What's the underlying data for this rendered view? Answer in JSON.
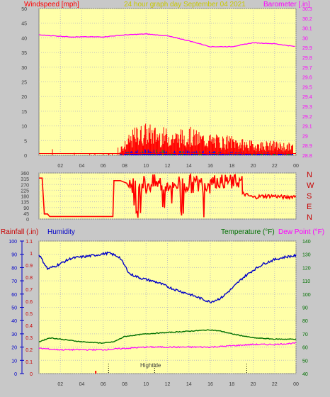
{
  "header": {
    "left": "Windspeed [mph]",
    "center": "24 hour graph day   September 04 2021",
    "right": "Barometer [.in]"
  },
  "colors": {
    "background": "#c8c8c8",
    "plot": "#ffffa8",
    "grid": "#c0c0c0",
    "wind": "#ff0000",
    "gust": "#0000ff",
    "windgreen": "#00a000",
    "barometer": "#ff00ff",
    "header_center": "#c8c800",
    "humidity": "#0000c8",
    "temperature": "#007000",
    "dew": "#ff00ff",
    "rain_label": "#c80000"
  },
  "compass": [
    "N",
    "W",
    "S",
    "E",
    "N"
  ],
  "lower_header": {
    "rainfall": "Rainfall (.in)",
    "humidity": "Humidity",
    "temperature": "Temperature (°F)",
    "dew": "Dew Point (°F)"
  },
  "tide": {
    "label": "Hightide"
  },
  "chart_data": [
    {
      "type": "line",
      "name": "wind-barometer",
      "x_ticks": [
        "02",
        "04",
        "06",
        "08",
        "10",
        "12",
        "14",
        "16",
        "18",
        "20",
        "22",
        "00"
      ],
      "y_left": {
        "label": "Windspeed [mph]",
        "ticks": [
          0,
          5,
          10,
          15,
          20,
          25,
          30,
          35,
          40,
          45,
          50
        ],
        "range": [
          0,
          50
        ]
      },
      "y_right": {
        "label": "Barometer [.in]",
        "ticks": [
          "28.8",
          "28.9",
          "29",
          "29.1",
          "29.2",
          "29.3",
          "29.4",
          "29.5",
          "29.6",
          "29.7",
          "29.8",
          "29.9",
          "30",
          "30.1",
          "30.2",
          "30.3"
        ],
        "range": [
          28.8,
          30.3
        ]
      },
      "barometer": {
        "x": [
          0,
          3,
          6,
          8,
          10,
          12,
          14,
          16,
          18,
          20,
          22,
          24
        ],
        "y": [
          30.03,
          30.01,
          30.01,
          30.03,
          30.04,
          30.02,
          29.97,
          29.91,
          29.91,
          29.95,
          29.94,
          29.91
        ]
      },
      "wind_envelope": {
        "x": [
          0,
          2,
          4,
          6,
          7,
          8,
          9,
          10,
          11,
          12,
          13,
          14,
          15,
          16,
          17,
          18,
          19,
          20,
          21,
          22,
          23,
          24
        ],
        "y": [
          1.5,
          1,
          0.5,
          0.5,
          0.5,
          4,
          8,
          9,
          8,
          7.5,
          7,
          8,
          6.5,
          6,
          5.5,
          5.5,
          4.5,
          4,
          4,
          4,
          3.5,
          3.5
        ]
      }
    },
    {
      "type": "line",
      "name": "wind-direction",
      "y_left": {
        "ticks": [
          0,
          45,
          90,
          135,
          180,
          225,
          270,
          315,
          360
        ],
        "range": [
          0,
          360
        ]
      },
      "x": [
        0,
        0.3,
        0.5,
        0.8,
        1,
        6.9,
        7,
        7.6,
        8.2,
        8.4,
        9,
        10,
        11,
        12,
        13,
        14,
        15,
        16,
        17,
        18,
        19,
        20,
        21,
        22,
        23,
        24
      ],
      "y": [
        320,
        320,
        40,
        40,
        20,
        20,
        300,
        300,
        280,
        250,
        300,
        200,
        290,
        280,
        270,
        250,
        300,
        300,
        280,
        240,
        200,
        170,
        180,
        180,
        170,
        180
      ]
    },
    {
      "type": "line",
      "name": "rain-humidity-temperature",
      "x_ticks": [
        "02",
        "04",
        "06",
        "08",
        "10",
        "12",
        "14",
        "16",
        "18",
        "20",
        "22",
        "00"
      ],
      "y_rain": {
        "label": "Rainfall (.in)",
        "ticks": [
          "0",
          "0.1",
          "0.2",
          "0.3",
          "0.4",
          "0.5",
          "0.6",
          "0.7",
          "0.8",
          "0.9",
          "1",
          "1.1"
        ],
        "range": [
          0,
          1.1
        ]
      },
      "y_humidity": {
        "label": "Humidity",
        "ticks": [
          0,
          10,
          20,
          30,
          40,
          50,
          60,
          70,
          80,
          90,
          100
        ],
        "range": [
          0,
          100
        ]
      },
      "y_temp": {
        "label": "Temperature (°F)",
        "ticks": [
          40,
          50,
          60,
          70,
          80,
          90,
          100,
          110,
          120,
          130,
          140
        ],
        "range": [
          40,
          140
        ]
      },
      "humidity": {
        "x": [
          0,
          0.8,
          1.5,
          3,
          5,
          6.5,
          7.5,
          8.5,
          9.5,
          11,
          12.5,
          14,
          15,
          16,
          17,
          18,
          19,
          20,
          21,
          22,
          23,
          24
        ],
        "y": [
          90,
          79,
          81,
          87,
          89,
          91,
          88,
          75,
          72,
          69,
          64,
          60,
          57,
          54,
          57,
          64,
          72,
          78,
          83,
          86,
          88,
          89
        ]
      },
      "temperature": {
        "x": [
          0,
          1,
          2,
          4,
          6,
          7,
          8,
          10,
          12,
          14,
          16,
          17,
          18,
          20,
          22,
          24
        ],
        "y": [
          64,
          67,
          66,
          64,
          63,
          64,
          68,
          70,
          71,
          72,
          73,
          72,
          70,
          67,
          66,
          66
        ]
      },
      "dew_point": {
        "x": [
          0,
          2,
          4,
          6,
          8,
          10,
          12,
          14,
          16,
          18,
          20,
          22,
          24
        ],
        "y": [
          59,
          58,
          58,
          58,
          59,
          60,
          60,
          60,
          60,
          61,
          62,
          62,
          63
        ]
      },
      "tide_markers": [
        6.5,
        10.8,
        19.4
      ]
    }
  ]
}
